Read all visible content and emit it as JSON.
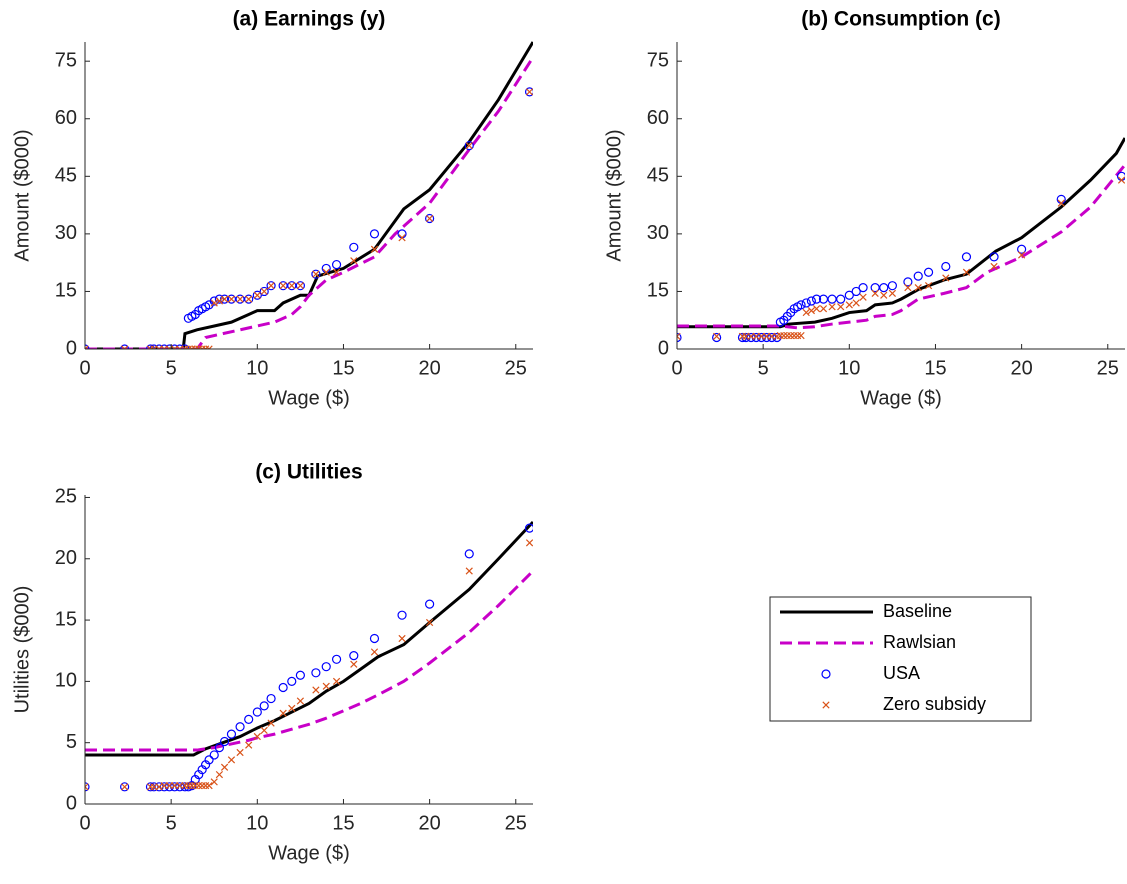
{
  "chart_data": [
    {
      "type": "line",
      "title": "(a) Earnings (y)",
      "xlabel": "Wage ($)",
      "ylabel": "Amount ($000)",
      "xlim": [
        0,
        26
      ],
      "ylim": [
        0,
        80
      ],
      "xticks": [
        0,
        5,
        10,
        15,
        20,
        25
      ],
      "yticks": [
        0,
        15,
        30,
        45,
        60,
        75
      ],
      "series": [
        {
          "style": "solid",
          "color": "#000000",
          "x": [
            0,
            5.7,
            5.8,
            6.5,
            7.5,
            8.5,
            9.5,
            10,
            11,
            11.5,
            12.5,
            13,
            13.5,
            15,
            16.8,
            18.5,
            20,
            22.3,
            24,
            26
          ],
          "values": [
            0,
            0,
            4,
            5,
            6,
            7,
            9,
            10,
            10,
            12,
            14,
            14,
            19,
            21,
            26,
            36.5,
            41.5,
            54,
            65,
            80
          ]
        },
        {
          "style": "dashed",
          "color": "#c800c8",
          "x": [
            0,
            6.5,
            7,
            8,
            9,
            10,
            11,
            12,
            12.5,
            13,
            14,
            15,
            16.8,
            18,
            20,
            22.3,
            24,
            26
          ],
          "values": [
            0,
            0,
            3,
            4,
            5,
            6,
            7,
            9,
            11,
            14,
            18,
            20,
            24,
            30,
            38,
            52,
            62,
            76
          ]
        },
        {
          "style": "circle",
          "color": "#0000ff",
          "x": [
            0,
            2.3,
            3.8,
            4.0,
            4.3,
            4.6,
            4.9,
            5.2,
            5.5,
            5.8,
            6.0,
            6.2,
            6.4,
            6.6,
            6.8,
            7.0,
            7.2,
            7.5,
            7.8,
            8.1,
            8.5,
            9.0,
            9.5,
            10.0,
            10.4,
            10.8,
            11.5,
            12.0,
            12.5,
            13.4,
            14.0,
            14.6,
            15.6,
            16.8,
            18.4,
            20.0,
            22.3,
            25.8
          ],
          "values": [
            0,
            0,
            0,
            0,
            0,
            0,
            0,
            0,
            0,
            0,
            8,
            8.5,
            9,
            10,
            10.5,
            11,
            11.5,
            12.5,
            13,
            13,
            13,
            13,
            13,
            14,
            15,
            16.5,
            16.5,
            16.5,
            16.5,
            19.5,
            21,
            22,
            26.5,
            30,
            30,
            34,
            53,
            67
          ]
        },
        {
          "style": "cross",
          "color": "#d95319",
          "x": [
            0,
            2.3,
            3.8,
            4.0,
            4.3,
            4.6,
            4.9,
            5.2,
            5.5,
            5.8,
            6.0,
            6.2,
            6.4,
            6.6,
            6.8,
            7.0,
            7.2,
            7.5,
            7.8,
            8.1,
            8.5,
            9.0,
            9.5,
            10.0,
            10.4,
            10.8,
            11.5,
            12.0,
            12.5,
            13.4,
            14.0,
            14.6,
            15.6,
            16.8,
            18.4,
            20.0,
            22.3,
            25.8
          ],
          "values": [
            0,
            0,
            0,
            0,
            0,
            0,
            0,
            0,
            0,
            0,
            0,
            0,
            0,
            0,
            0,
            0,
            0,
            12,
            12.5,
            13,
            13,
            13,
            13,
            14,
            15,
            16.5,
            16.5,
            16.5,
            16.5,
            19.5,
            20,
            20,
            23,
            26,
            29,
            34,
            53,
            67
          ]
        }
      ]
    },
    {
      "type": "line",
      "title": "(b) Consumption (c)",
      "xlabel": "Wage ($)",
      "ylabel": "Amount ($000)",
      "xlim": [
        0,
        26
      ],
      "ylim": [
        0,
        80
      ],
      "xticks": [
        0,
        5,
        10,
        15,
        20,
        25
      ],
      "yticks": [
        0,
        15,
        30,
        45,
        60,
        75
      ],
      "series": [
        {
          "style": "solid",
          "color": "#000000",
          "x": [
            0,
            6,
            6.5,
            8,
            9,
            10,
            11,
            11.5,
            12.5,
            13,
            14,
            15.5,
            16.8,
            18.5,
            20,
            22.3,
            24,
            25.5,
            26
          ],
          "values": [
            5.8,
            5.8,
            6.5,
            7,
            8,
            9.5,
            10,
            11.5,
            12,
            13,
            15.5,
            18,
            19.5,
            25.5,
            29,
            37,
            44,
            51,
            55
          ]
        },
        {
          "style": "dashed",
          "color": "#c800c8",
          "x": [
            0,
            6,
            7,
            8,
            9,
            10,
            11,
            11.5,
            12.5,
            13,
            14,
            15.5,
            16.8,
            18,
            20,
            22.3,
            24,
            26
          ],
          "values": [
            6,
            6,
            5.5,
            5.8,
            6.5,
            7,
            7.5,
            8.5,
            9,
            10,
            13,
            14.5,
            16,
            20,
            24,
            30.5,
            37,
            48
          ]
        },
        {
          "style": "circle",
          "color": "#0000ff",
          "x": [
            0,
            2.3,
            3.8,
            4.0,
            4.3,
            4.6,
            4.9,
            5.2,
            5.5,
            5.8,
            6.0,
            6.2,
            6.4,
            6.6,
            6.8,
            7.0,
            7.2,
            7.5,
            7.8,
            8.1,
            8.5,
            9.0,
            9.5,
            10.0,
            10.4,
            10.8,
            11.5,
            12.0,
            12.5,
            13.4,
            14.0,
            14.6,
            15.6,
            16.8,
            18.4,
            20.0,
            22.3,
            25.8
          ],
          "values": [
            3,
            3,
            3,
            3,
            3,
            3,
            3,
            3,
            3,
            3,
            7,
            7.5,
            8.5,
            9.5,
            10.5,
            11,
            11.5,
            12,
            12.5,
            13,
            13,
            13,
            13,
            14,
            15,
            16,
            16,
            16,
            16.5,
            17.5,
            19,
            20,
            21.5,
            24,
            24,
            26,
            39,
            45
          ]
        },
        {
          "style": "cross",
          "color": "#d95319",
          "x": [
            0,
            2.3,
            3.8,
            4.0,
            4.3,
            4.6,
            4.9,
            5.2,
            5.5,
            5.8,
            6.0,
            6.2,
            6.4,
            6.6,
            6.8,
            7.0,
            7.2,
            7.5,
            7.8,
            8.1,
            8.5,
            9.0,
            9.5,
            10.0,
            10.4,
            10.8,
            11.5,
            12.0,
            12.5,
            13.4,
            14.0,
            14.6,
            15.6,
            16.8,
            18.4,
            20.0,
            22.3,
            25.8
          ],
          "values": [
            3.3,
            3.3,
            3.3,
            3.3,
            3.3,
            3.3,
            3.3,
            3.3,
            3.3,
            3.3,
            3.5,
            3.5,
            3.5,
            3.5,
            3.5,
            3.5,
            3.5,
            9.5,
            10,
            10.5,
            10.5,
            11,
            11,
            11.5,
            12,
            13.5,
            14.5,
            14,
            14.5,
            16,
            16,
            16.5,
            18.5,
            20,
            21.5,
            24.5,
            38,
            44
          ]
        }
      ]
    },
    {
      "type": "line",
      "title": "(c) Utilities",
      "xlabel": "Wage ($)",
      "ylabel": "Utilities ($000)",
      "xlim": [
        0,
        26
      ],
      "ylim": [
        0,
        25.2
      ],
      "xticks": [
        0,
        5,
        10,
        15,
        20,
        25
      ],
      "yticks": [
        0,
        5,
        10,
        15,
        20,
        25
      ],
      "series": [
        {
          "name": "Baseline",
          "style": "solid",
          "color": "#000000",
          "x": [
            0,
            6.3,
            7,
            8,
            9,
            10,
            11,
            12,
            13,
            14,
            15,
            16,
            17,
            18.5,
            20,
            22.3,
            24,
            26
          ],
          "values": [
            4,
            4,
            4.5,
            5,
            5.5,
            6.2,
            6.8,
            7.5,
            8.2,
            9.2,
            10,
            11,
            12,
            13,
            14.8,
            17.5,
            20,
            23
          ]
        },
        {
          "name": "Rawlsian",
          "style": "dashed",
          "color": "#c800c8",
          "x": [
            0,
            6.5,
            7.5,
            8.5,
            9.5,
            10,
            11,
            12,
            13,
            14,
            15,
            16,
            17,
            18.5,
            20,
            22.3,
            24,
            26
          ],
          "values": [
            4.4,
            4.4,
            4.6,
            4.9,
            5.2,
            5.4,
            5.7,
            6.1,
            6.5,
            7.0,
            7.6,
            8.2,
            8.9,
            10,
            11.5,
            14,
            16.2,
            19
          ]
        },
        {
          "name": "USA",
          "style": "circle",
          "color": "#0000ff",
          "x": [
            0,
            2.3,
            3.8,
            4.0,
            4.3,
            4.6,
            4.9,
            5.2,
            5.5,
            5.8,
            6.0,
            6.2,
            6.4,
            6.6,
            6.8,
            7.0,
            7.2,
            7.5,
            7.8,
            8.1,
            8.5,
            9.0,
            9.5,
            10.0,
            10.4,
            10.8,
            11.5,
            12.0,
            12.5,
            13.4,
            14.0,
            14.6,
            15.6,
            16.8,
            18.4,
            20.0,
            22.3,
            25.8
          ],
          "values": [
            1.4,
            1.4,
            1.4,
            1.4,
            1.4,
            1.4,
            1.4,
            1.4,
            1.4,
            1.4,
            1.4,
            1.5,
            2.0,
            2.4,
            2.8,
            3.2,
            3.6,
            4.0,
            4.6,
            5.1,
            5.7,
            6.3,
            6.9,
            7.5,
            8.0,
            8.6,
            9.5,
            10.0,
            10.5,
            10.7,
            11.2,
            11.8,
            12.1,
            13.5,
            15.4,
            16.3,
            20.4,
            22.5
          ]
        },
        {
          "name": "Zero subsidy",
          "style": "cross",
          "color": "#d95319",
          "x": [
            0,
            2.3,
            3.8,
            4.0,
            4.3,
            4.6,
            4.9,
            5.2,
            5.5,
            5.8,
            6.0,
            6.2,
            6.4,
            6.6,
            6.8,
            7.0,
            7.2,
            7.5,
            7.8,
            8.1,
            8.5,
            9.0,
            9.5,
            10.0,
            10.4,
            10.8,
            11.5,
            12.0,
            12.5,
            13.4,
            14.0,
            14.6,
            15.6,
            16.8,
            18.4,
            20.0,
            22.3,
            25.8
          ],
          "values": [
            1.4,
            1.4,
            1.4,
            1.4,
            1.4,
            1.5,
            1.5,
            1.5,
            1.5,
            1.5,
            1.5,
            1.5,
            1.5,
            1.5,
            1.5,
            1.5,
            1.5,
            1.8,
            2.4,
            3.0,
            3.6,
            4.2,
            4.8,
            5.5,
            6.0,
            6.6,
            7.4,
            7.8,
            8.4,
            9.3,
            9.6,
            10.0,
            11.4,
            12.4,
            13.5,
            14.8,
            19.0,
            21.3
          ]
        }
      ]
    }
  ]
}
